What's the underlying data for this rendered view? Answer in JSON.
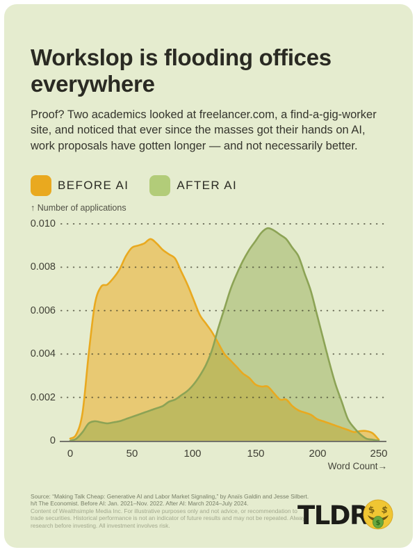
{
  "page": {
    "background": "#ffffff",
    "card_background": "#E5ECCF"
  },
  "header": {
    "title": "Workslop is flooding offices everywhere",
    "subtitle": "Proof? Two academics looked at freelancer.com, a find-a-gig-worker site, and noticed that ever since the masses got their hands on AI, work proposals have gotten longer — and not necessarily better."
  },
  "legend": [
    {
      "label": "BEFORE AI",
      "color": "#E9A91F"
    },
    {
      "label": "AFTER AI",
      "color": "#B2CC79"
    }
  ],
  "chart_data": {
    "type": "area",
    "title": "",
    "ylabel": "↑ Number of applications",
    "xlabel": "Word Count→",
    "xlim": [
      0,
      250
    ],
    "ylim": [
      0,
      0.01
    ],
    "grid": "dotted horizontal",
    "legend_position": "top-left",
    "y_ticks": [
      "0.010",
      "0.008",
      "0.006",
      "0.004",
      "0.002",
      "0"
    ],
    "y_tick_values": [
      0.01,
      0.008,
      0.006,
      0.004,
      0.002,
      0
    ],
    "x_ticks": [
      "0",
      "50",
      "100",
      "150",
      "200",
      "250"
    ],
    "x_tick_values": [
      0,
      50,
      100,
      150,
      200,
      250
    ],
    "x": [
      0,
      5,
      10,
      15,
      20,
      25,
      30,
      35,
      40,
      45,
      50,
      55,
      60,
      65,
      70,
      75,
      80,
      85,
      90,
      95,
      100,
      105,
      110,
      115,
      120,
      125,
      130,
      135,
      140,
      145,
      150,
      155,
      160,
      165,
      170,
      175,
      180,
      185,
      190,
      195,
      200,
      205,
      210,
      215,
      220,
      225,
      230,
      235,
      240,
      245,
      250
    ],
    "series": [
      {
        "name": "BEFORE AI",
        "stroke": "#E9A91F",
        "fill": "rgba(233,169,31,0.52)",
        "values": [
          0.0001,
          0.0003,
          0.0013,
          0.004,
          0.0063,
          0.0071,
          0.0072,
          0.0075,
          0.0079,
          0.0085,
          0.0089,
          0.009,
          0.0091,
          0.0093,
          0.0091,
          0.0088,
          0.0086,
          0.0084,
          0.0078,
          0.0072,
          0.0065,
          0.0058,
          0.0054,
          0.005,
          0.0045,
          0.004,
          0.0037,
          0.0034,
          0.0031,
          0.0029,
          0.0026,
          0.0025,
          0.0025,
          0.0022,
          0.0019,
          0.0019,
          0.0016,
          0.0014,
          0.0013,
          0.0012,
          0.001,
          0.0009,
          0.0008,
          0.0007,
          0.0006,
          0.0005,
          0.0004,
          0.00045,
          0.00045,
          0.00035,
          5e-05
        ]
      },
      {
        "name": "AFTER AI",
        "stroke": "#8CA355",
        "fill": "rgba(143,168,74,0.45)",
        "values": [
          0.0,
          0.0001,
          0.0004,
          0.0008,
          0.0009,
          0.00085,
          0.0008,
          0.00085,
          0.0009,
          0.001,
          0.0011,
          0.0012,
          0.0013,
          0.0014,
          0.0015,
          0.0016,
          0.0018,
          0.0019,
          0.0021,
          0.0023,
          0.0026,
          0.003,
          0.0035,
          0.0042,
          0.0052,
          0.0061,
          0.007,
          0.0077,
          0.0083,
          0.0088,
          0.0092,
          0.0096,
          0.0098,
          0.0097,
          0.0095,
          0.0093,
          0.0089,
          0.0085,
          0.0077,
          0.0069,
          0.0058,
          0.0047,
          0.0036,
          0.0026,
          0.0018,
          0.001,
          0.0006,
          0.0003,
          0.0001,
          5e-05,
          0.0
        ]
      }
    ]
  },
  "footer": {
    "source": "Source: “Making Talk Cheap: Generative AI and Labor Market Signaling,” by Anaïs Galdin and Jesse Silbert. h/t The Economist. Before AI: Jan. 2021–Nov. 2022. After AI: March 2024–July 2024.",
    "disclaimer": "Content of Wealthsimple Media Inc. For illustrative purposes only and not advice, or recommendation to trade securities. Historical performance is not an indicator of future results and may not be repeated. Always research before investing. All investment involves risk.",
    "logo_text": "TLDR",
    "logo_emoji": "money-mouth-face"
  }
}
